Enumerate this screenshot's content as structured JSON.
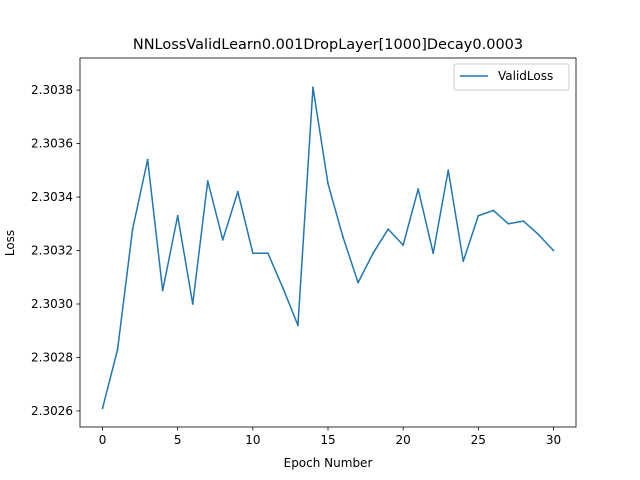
{
  "chart_data": {
    "type": "line",
    "title": "NNLossValidLearn0.001DropLayer[1000]Decay0.0003",
    "xlabel": "Epoch Number",
    "ylabel": "Loss",
    "xlim": [
      -1.5,
      31.5
    ],
    "ylim": [
      2.30254,
      2.30392
    ],
    "xticks": [
      0,
      5,
      10,
      15,
      20,
      25,
      30
    ],
    "yticks": [
      2.3026,
      2.3028,
      2.303,
      2.3032,
      2.3034,
      2.3036,
      2.3038
    ],
    "ytick_labels": [
      "2.3026",
      "2.3028",
      "2.3030",
      "2.3032",
      "2.3034",
      "2.3036",
      "2.3038"
    ],
    "grid": false,
    "legend_position": "top-right",
    "series": [
      {
        "name": "ValidLoss",
        "color": "#1f77b4",
        "x": [
          0,
          1,
          2,
          3,
          4,
          5,
          6,
          7,
          8,
          9,
          10,
          11,
          12,
          13,
          14,
          15,
          16,
          17,
          18,
          19,
          20,
          21,
          22,
          23,
          24,
          25,
          26,
          27,
          28,
          29,
          30
        ],
        "values": [
          2.30261,
          2.30283,
          2.30328,
          2.30354,
          2.30305,
          2.30333,
          2.303,
          2.30346,
          2.30324,
          2.30342,
          2.30319,
          2.30319,
          2.30306,
          2.30292,
          2.30381,
          2.30345,
          2.30325,
          2.30308,
          2.30319,
          2.30328,
          2.30322,
          2.30343,
          2.30319,
          2.3035,
          2.30316,
          2.30333,
          2.30335,
          2.3033,
          2.30331,
          2.30326,
          2.3032
        ]
      }
    ]
  }
}
